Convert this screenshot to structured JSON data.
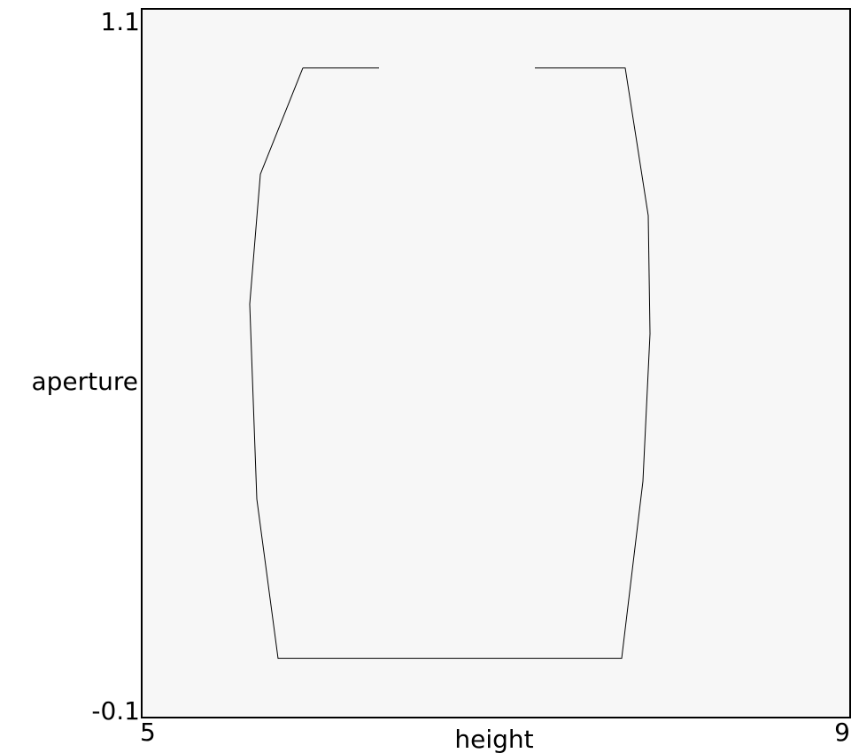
{
  "chart_data": {
    "type": "line",
    "title": "",
    "xlabel": "height",
    "ylabel": "aperture",
    "xlim": [
      5,
      9
    ],
    "ylim": [
      -0.1,
      1.1
    ],
    "x_tick_labels": [
      "5",
      "9"
    ],
    "y_tick_labels": [
      "1.1",
      "-0.1"
    ],
    "grid": false,
    "legend": "none",
    "background_color": "#f7f7f7",
    "line_color": "#000000",
    "series": [
      {
        "segments": [
          [
            [
              5.91,
              1.0
            ],
            [
              5.67,
              0.82
            ],
            [
              5.61,
              0.6
            ],
            [
              5.65,
              0.27
            ],
            [
              5.77,
              0.0
            ],
            [
              7.71,
              0.0
            ],
            [
              7.83,
              0.3
            ],
            [
              7.87,
              0.55
            ],
            [
              7.86,
              0.75
            ],
            [
              7.73,
              1.0
            ],
            [
              7.22,
              1.0
            ]
          ],
          [
            [
              5.91,
              1.0
            ],
            [
              6.34,
              1.0
            ]
          ]
        ]
      }
    ]
  }
}
